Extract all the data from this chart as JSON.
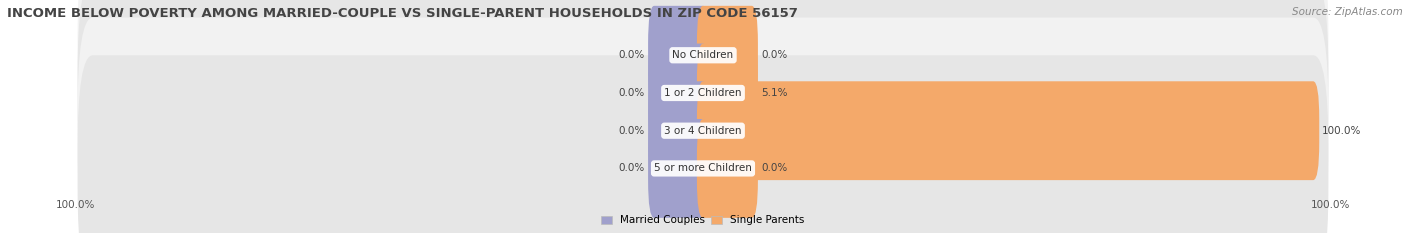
{
  "title": "INCOME BELOW POVERTY AMONG MARRIED-COUPLE VS SINGLE-PARENT HOUSEHOLDS IN ZIP CODE 56157",
  "source": "Source: ZipAtlas.com",
  "categories": [
    "No Children",
    "1 or 2 Children",
    "3 or 4 Children",
    "5 or more Children"
  ],
  "married_values": [
    0.0,
    0.0,
    0.0,
    0.0
  ],
  "single_values": [
    0.0,
    5.1,
    100.0,
    0.0
  ],
  "married_color": "#a0a0cc",
  "single_color": "#f4a96a",
  "row_bg_light": "#f2f2f2",
  "row_bg_dark": "#e6e6e6",
  "title_fontsize": 9.5,
  "label_fontsize": 7.5,
  "value_fontsize": 7.5,
  "source_fontsize": 7.5,
  "axis_label_left": "100.0%",
  "axis_label_right": "100.0%",
  "max_val": 100.0,
  "min_bar_width": 8.0,
  "figsize": [
    14.06,
    2.33
  ],
  "dpi": 100
}
